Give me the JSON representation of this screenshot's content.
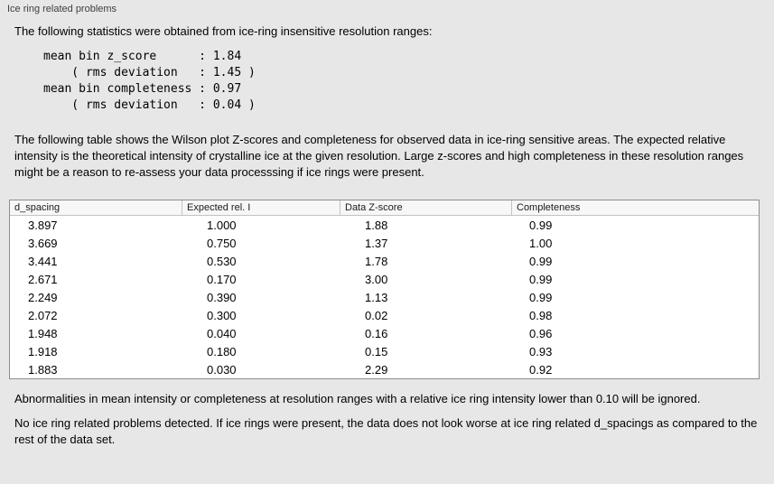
{
  "panel": {
    "title": "Ice ring related problems"
  },
  "intro": "The following statistics were obtained from ice-ring insensitive resolution ranges:",
  "stats": {
    "lines": [
      "mean bin z_score      : 1.84",
      "    ( rms deviation   : 1.45 )",
      "mean bin completeness : 0.97",
      "    ( rms deviation   : 0.04 )"
    ]
  },
  "description": "The following table shows the Wilson plot Z-scores and completeness for observed data in ice-ring sensitive areas. The expected relative intensity is the theoretical intensity of crystalline ice at the given resolution. Large z-scores and high completeness in these resolution ranges might be a reason to re-assess your data processsing if ice rings were present.",
  "table": {
    "headers": [
      "d_spacing",
      "Expected rel. I",
      "Data Z-score",
      "Completeness"
    ],
    "rows": [
      [
        "3.897",
        "1.000",
        "1.88",
        "0.99"
      ],
      [
        "3.669",
        "0.750",
        "1.37",
        "1.00"
      ],
      [
        "3.441",
        "0.530",
        "1.78",
        "0.99"
      ],
      [
        "2.671",
        "0.170",
        "3.00",
        "0.99"
      ],
      [
        "2.249",
        "0.390",
        "1.13",
        "0.99"
      ],
      [
        "2.072",
        "0.300",
        "0.02",
        "0.98"
      ],
      [
        "1.948",
        "0.040",
        "0.16",
        "0.96"
      ],
      [
        "1.918",
        "0.180",
        "0.15",
        "0.93"
      ],
      [
        "1.883",
        "0.030",
        "2.29",
        "0.92"
      ]
    ]
  },
  "note": "Abnormalities in mean intensity or completeness at resolution ranges with a relative ice ring intensity lower than 0.10 will be ignored.",
  "conclusion": "No ice ring related problems detected. If ice rings were present, the data does not look worse at ice ring related d_spacings as compared to the rest of the data set."
}
